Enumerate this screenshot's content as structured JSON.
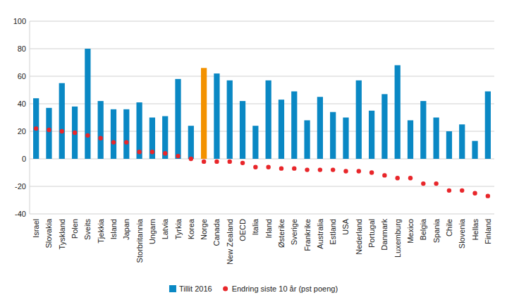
{
  "chart_data": {
    "type": "bar",
    "categories": [
      "Israel",
      "Slovakia",
      "Tyskland",
      "Polen",
      "Sveits",
      "Tjekkia",
      "Island",
      "Japan",
      "Storbritannia",
      "Ungarn",
      "Latvia",
      "Tyrkia",
      "Korea",
      "Norge",
      "Canada",
      "New Zealand",
      "OECD",
      "Italia",
      "Irland",
      "Østerike",
      "Sverige",
      "Frankrike",
      "Australia",
      "Estland",
      "USA",
      "Nederland",
      "Portugal",
      "Danmark",
      "Luxemburg",
      "Mexico",
      "Belgia",
      "Spania",
      "Chile",
      "Slovenia",
      "Hellas",
      "Finland"
    ],
    "series": [
      {
        "name": "Tillit 2016",
        "type": "bar",
        "color": "#0a88c4",
        "colors": [
          "#0a88c4",
          "#0a88c4",
          "#0a88c4",
          "#0a88c4",
          "#0a88c4",
          "#0a88c4",
          "#0a88c4",
          "#0a88c4",
          "#0a88c4",
          "#0a88c4",
          "#0a88c4",
          "#0a88c4",
          "#0a88c4",
          "#f39200",
          "#0a88c4",
          "#0a88c4",
          "#0a88c4",
          "#0a88c4",
          "#0a88c4",
          "#0a88c4",
          "#0a88c4",
          "#0a88c4",
          "#0a88c4",
          "#0a88c4",
          "#0a88c4",
          "#0a88c4",
          "#0a88c4",
          "#0a88c4",
          "#0a88c4",
          "#0a88c4",
          "#0a88c4",
          "#0a88c4",
          "#0a88c4",
          "#0a88c4",
          "#0a88c4",
          "#0a88c4"
        ],
        "values": [
          44,
          37,
          55,
          38,
          80,
          42,
          36,
          36,
          41,
          30,
          31,
          58,
          24,
          66,
          62,
          57,
          42,
          24,
          57,
          43,
          49,
          28,
          45,
          34,
          30,
          57,
          35,
          47,
          68,
          28,
          42,
          30,
          20,
          25,
          13,
          49
        ]
      },
      {
        "name": "Endring siste 10 år (pst poeng)",
        "type": "scatter",
        "color": "#e8262a",
        "marker": "circle",
        "values": [
          22,
          21,
          20,
          19,
          17,
          15,
          12,
          12,
          5,
          5,
          4,
          2,
          0,
          -2,
          -2,
          -2,
          -3,
          -6,
          -6,
          -7,
          -7,
          -8,
          -8,
          -8,
          -9,
          -9,
          -10,
          -12,
          -14,
          -14,
          -18,
          -18,
          -23,
          -23,
          -25,
          -27
        ]
      }
    ],
    "ylim": [
      -40,
      100
    ],
    "yticks": [
      -40,
      -20,
      0,
      20,
      40,
      60,
      80,
      100
    ],
    "grid": true,
    "legend": "bottom"
  }
}
